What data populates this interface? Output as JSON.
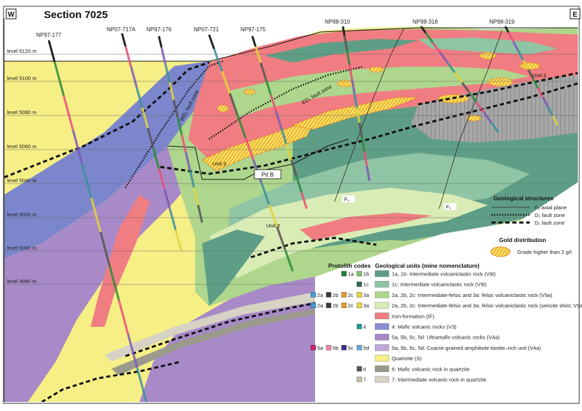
{
  "corner_left": "W",
  "corner_right": "E",
  "title": "Section 7025",
  "drillholes": [
    "NP97-177",
    "NP07-717A",
    "NP97-176",
    "NP07-721",
    "NP97-175",
    "NP98-310",
    "NP98-318",
    "NP98-319"
  ],
  "levels": [
    "level 5120 m",
    "level 5100 m",
    "level 5080 m",
    "level 5060 m",
    "level 5040 m",
    "level 5020 m",
    "level 5000 m",
    "level 4980 m"
  ],
  "map_labels": {
    "wd_fault": "WD₂ fault zone",
    "ed_fault": "ED₂ fault zone",
    "pit": "Pit B",
    "unit3_a": "Unit 3",
    "unit3_b": "Unit 3",
    "unit3_c": "Unit 3",
    "f3_a": "F₃",
    "f3_b": "F₃"
  },
  "structures_legend": {
    "heading": "Geological structures",
    "items": [
      "F₃ axial plane",
      "D₂ fault zone",
      "D₁ fault zone"
    ]
  },
  "gold_legend": {
    "heading": "Gold distribution",
    "item": "Grade higher than 2 g/t"
  },
  "protolith_heading": "Protolith codes",
  "geo_heading": "Geological units (mine nomenclature)",
  "protolith_rows": [
    [
      "1a",
      "1b"
    ],
    [
      "1c"
    ],
    [
      "2a",
      "2b",
      "2c",
      "3a"
    ],
    [
      "2a",
      "2b",
      "2c",
      "3a"
    ],
    [],
    [
      "4"
    ],
    [],
    [
      "5a",
      "5b",
      "5c",
      "5d"
    ],
    [],
    [
      "6"
    ],
    [
      "7"
    ]
  ],
  "units": [
    {
      "label": "1a, 1b:  Intermediate volcaniclastic rock (V9i)",
      "color": "#5f9e86"
    },
    {
      "label": "1c: Intermediate volcaniclastic rock (V9i)",
      "color": "#8fc4a4"
    },
    {
      "label": "2a, 2b, 2c:  Intermediate-felsic and 3a: felsic volcaniclastic rock (V9a)",
      "color": "#aed68c"
    },
    {
      "label": "2a, 2b, 2c:  Intermediate-felsic and 3a: felsic volcaniclastic rock (sericite shist; V9a)",
      "color": "#d9ecb5"
    },
    {
      "label": "Iron-formation (IF)",
      "color": "#f07d82"
    },
    {
      "label": "4: Mafic volcanic rocks (V3)",
      "color": "#8a8fd6"
    },
    {
      "label": "5a, 5b, 5c, 5d: Ultramafic volcanic rocks (V4a)",
      "color": "#a88ac8"
    },
    {
      "label": "5a, 5b, 5c, 5d: Coarse-grained amphibole-biotite–rich unit (V4a)",
      "color": "#bfa8d8"
    },
    {
      "label": "Quartzite (S)",
      "color": "#f6ef86"
    },
    {
      "label": "6: Mafic volcanic rock in quartzite",
      "color": "#9a9a8c"
    },
    {
      "label": "7: Intermediate volcanic rock in quartzite",
      "color": "#d6d2c4"
    }
  ]
}
